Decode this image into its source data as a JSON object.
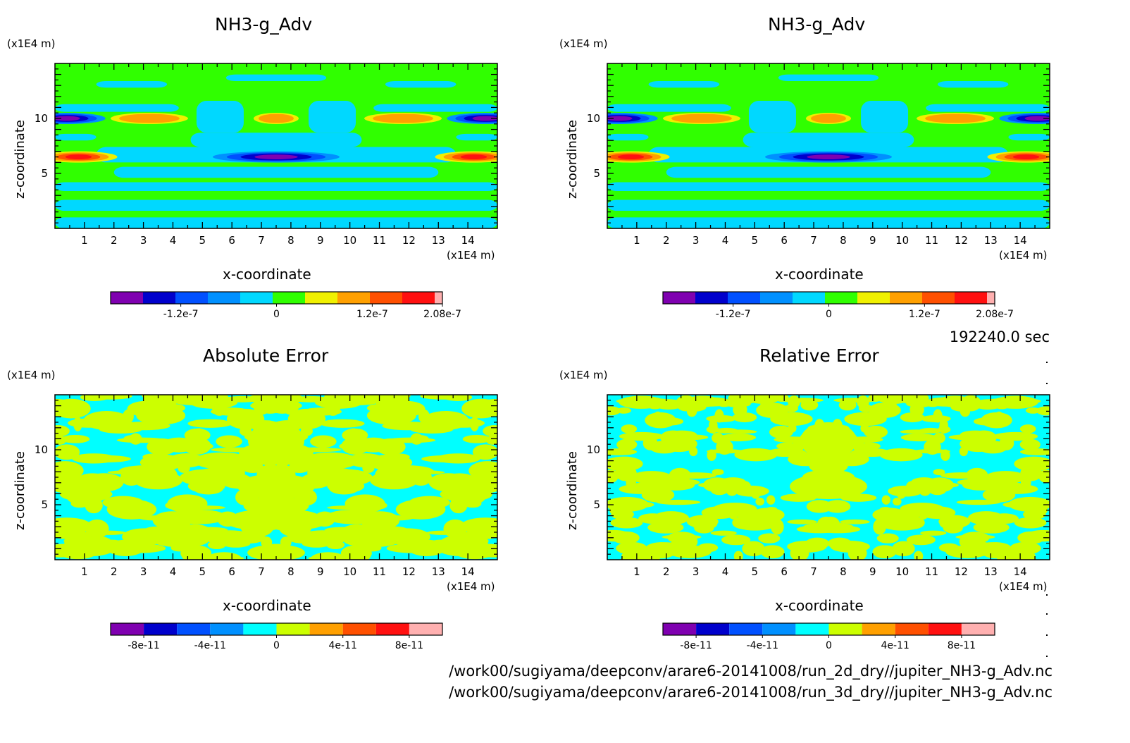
{
  "time_label": "192240.0 sec",
  "files": [
    "/work00/sugiyama/deepconv/arare6-20141008/run_2d_dry//jupiter_NH3-g_Adv.nc",
    "/work00/sugiyama/deepconv/arare6-20141008/run_3d_dry//jupiter_NH3-g_Adv.nc"
  ],
  "colors": {
    "adv_levels": [
      "#7f00b0",
      "#0000cc",
      "#0050ff",
      "#0090ff",
      "#00d8ff",
      "#30ff00",
      "#f0f000",
      "#ffa000",
      "#ff5000",
      "#ff1010",
      "#ffb0b0"
    ],
    "err_levels": [
      "#7f00b0",
      "#0000cc",
      "#0050ff",
      "#0090ff",
      "#00ffff",
      "#ccff00",
      "#ffa000",
      "#ff5000",
      "#ff1010",
      "#ffb0b0"
    ]
  },
  "chart_data": [
    {
      "type": "heatmap",
      "title": "NH3-g_Adv",
      "xlabel": "x-coordinate",
      "ylabel": "z-coordinate",
      "x_unit": "(x1E4 m)",
      "y_unit": "(x1E4 m)",
      "xlim": [
        0,
        15
      ],
      "ylim": [
        0,
        15
      ],
      "xticks": [
        "1",
        "2",
        "3",
        "4",
        "5",
        "6",
        "7",
        "8",
        "9",
        "10",
        "11",
        "12",
        "13",
        "14"
      ],
      "yticks": [
        "5",
        "10"
      ],
      "colorbar": {
        "min": -2.08e-07,
        "max": 2.08e-07,
        "levels": 11,
        "ticks": [
          {
            "v": -1.2e-07,
            "label": "-1.2e-7"
          },
          {
            "v": 0,
            "label": "0"
          },
          {
            "v": 1.2e-07,
            "label": "1.2e-7"
          },
          {
            "v": 2.08e-07,
            "label": "2.08e-7"
          }
        ]
      },
      "features": [
        {
          "x": 0.4,
          "z": 10.0,
          "value": -2e-07
        },
        {
          "x": 14.6,
          "z": 10.0,
          "value": -2e-07
        },
        {
          "x": 3.2,
          "z": 10.0,
          "value": 1.2e-07
        },
        {
          "x": 7.5,
          "z": 10.0,
          "value": 1.2e-07
        },
        {
          "x": 11.8,
          "z": 10.0,
          "value": 1.2e-07
        },
        {
          "x": 0.8,
          "z": 6.5,
          "value": 2e-07
        },
        {
          "x": 14.2,
          "z": 6.5,
          "value": 2e-07
        },
        {
          "x": 7.5,
          "z": 6.5,
          "value": -2e-07
        }
      ]
    },
    {
      "type": "heatmap",
      "title": "NH3-g_Adv",
      "xlabel": "x-coordinate",
      "ylabel": "z-coordinate",
      "x_unit": "(x1E4 m)",
      "y_unit": "(x1E4 m)",
      "xlim": [
        0,
        15
      ],
      "ylim": [
        0,
        15
      ],
      "xticks": [
        "1",
        "2",
        "3",
        "4",
        "5",
        "6",
        "7",
        "8",
        "9",
        "10",
        "11",
        "12",
        "13",
        "14"
      ],
      "yticks": [
        "5",
        "10"
      ],
      "colorbar": {
        "min": -2.08e-07,
        "max": 2.08e-07,
        "levels": 11,
        "ticks": [
          {
            "v": -1.2e-07,
            "label": "-1.2e-7"
          },
          {
            "v": 0,
            "label": "0"
          },
          {
            "v": 1.2e-07,
            "label": "1.2e-7"
          },
          {
            "v": 2.08e-07,
            "label": "2.08e-7"
          }
        ]
      },
      "features": [
        {
          "x": 0.4,
          "z": 10.0,
          "value": -2e-07
        },
        {
          "x": 14.6,
          "z": 10.0,
          "value": -2e-07
        },
        {
          "x": 3.2,
          "z": 10.0,
          "value": 1.2e-07
        },
        {
          "x": 7.5,
          "z": 10.0,
          "value": 1.2e-07
        },
        {
          "x": 11.8,
          "z": 10.0,
          "value": 1.2e-07
        },
        {
          "x": 0.8,
          "z": 6.5,
          "value": 2e-07
        },
        {
          "x": 14.2,
          "z": 6.5,
          "value": 2e-07
        },
        {
          "x": 7.5,
          "z": 6.5,
          "value": -2e-07
        }
      ]
    },
    {
      "type": "heatmap",
      "title": "Absolute Error",
      "xlabel": "x-coordinate",
      "ylabel": "z-coordinate",
      "x_unit": "(x1E4 m)",
      "y_unit": "(x1E4 m)",
      "xlim": [
        0,
        15
      ],
      "ylim": [
        0,
        15
      ],
      "xticks": [
        "1",
        "2",
        "3",
        "4",
        "5",
        "6",
        "7",
        "8",
        "9",
        "10",
        "11",
        "12",
        "13",
        "14"
      ],
      "yticks": [
        "5",
        "10"
      ],
      "colorbar": {
        "min": -1e-10,
        "max": 1e-10,
        "levels": 10,
        "ticks": [
          {
            "v": -8e-11,
            "label": "-8e-11"
          },
          {
            "v": -4e-11,
            "label": "-4e-11"
          },
          {
            "v": 0,
            "label": "0"
          },
          {
            "v": 4e-11,
            "label": "4e-11"
          },
          {
            "v": 8e-11,
            "label": "8e-11"
          }
        ]
      },
      "values_shown": [
        -1e-11,
        1e-11
      ]
    },
    {
      "type": "heatmap",
      "title": "Relative Error",
      "xlabel": "x-coordinate",
      "ylabel": "z-coordinate",
      "x_unit": "(x1E4 m)",
      "y_unit": "(x1E4 m)",
      "xlim": [
        0,
        15
      ],
      "ylim": [
        0,
        15
      ],
      "xticks": [
        "1",
        "2",
        "3",
        "4",
        "5",
        "6",
        "7",
        "8",
        "9",
        "10",
        "11",
        "12",
        "13",
        "14"
      ],
      "yticks": [
        "5",
        "10"
      ],
      "colorbar": {
        "min": -1e-10,
        "max": 1e-10,
        "levels": 10,
        "ticks": [
          {
            "v": -8e-11,
            "label": "-8e-11"
          },
          {
            "v": -4e-11,
            "label": "-4e-11"
          },
          {
            "v": 0,
            "label": "0"
          },
          {
            "v": 4e-11,
            "label": "4e-11"
          },
          {
            "v": 8e-11,
            "label": "8e-11"
          }
        ]
      },
      "values_shown": [
        -1e-11,
        1e-11
      ]
    }
  ]
}
